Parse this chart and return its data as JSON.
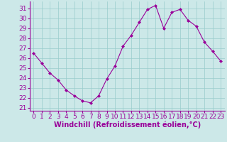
{
  "x": [
    0,
    1,
    2,
    3,
    4,
    5,
    6,
    7,
    8,
    9,
    10,
    11,
    12,
    13,
    14,
    15,
    16,
    17,
    18,
    19,
    20,
    21,
    22,
    23
  ],
  "y": [
    26.5,
    25.5,
    24.5,
    23.8,
    22.8,
    22.2,
    21.7,
    21.5,
    22.2,
    23.9,
    25.2,
    27.2,
    28.3,
    29.6,
    30.9,
    31.3,
    29.0,
    30.6,
    30.9,
    29.8,
    29.2,
    27.6,
    26.7,
    25.7
  ],
  "line_color": "#990099",
  "marker": "D",
  "marker_size": 2,
  "bg_color": "#cce8e8",
  "grid_color": "#99cccc",
  "xlabel": "Windchill (Refroidissement éolien,°C)",
  "xlabel_color": "#990099",
  "ylabel_ticks": [
    21,
    22,
    23,
    24,
    25,
    26,
    27,
    28,
    29,
    30,
    31
  ],
  "ylim": [
    20.7,
    31.7
  ],
  "xlim": [
    -0.5,
    23.5
  ],
  "tick_color": "#990099",
  "spine_color": "#990099",
  "font_size": 6.5,
  "xlabel_font_size": 7
}
